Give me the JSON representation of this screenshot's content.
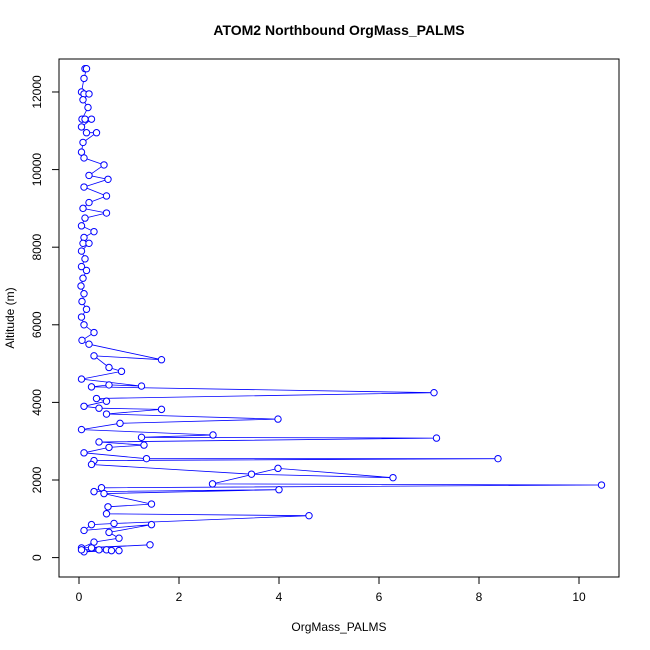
{
  "chart_data": {
    "type": "line",
    "title": "ATOM2 Northbound OrgMass_PALMS",
    "xlabel": "OrgMass_PALMS",
    "ylabel": "Altitude (m)",
    "xlim": [
      -0.4,
      10.8
    ],
    "ylim": [
      -500,
      12850
    ],
    "xticks": [
      0,
      2,
      4,
      6,
      8,
      10
    ],
    "yticks": [
      0,
      2000,
      4000,
      6000,
      8000,
      10000,
      12000
    ],
    "series_color": "#0000ff",
    "markers": "open-circle",
    "grid": false,
    "legend": "none",
    "points": [
      [
        0.12,
        12600
      ],
      [
        0.15,
        12600
      ],
      [
        0.1,
        12350
      ],
      [
        0.05,
        12000
      ],
      [
        0.1,
        11950
      ],
      [
        0.2,
        11950
      ],
      [
        0.08,
        11800
      ],
      [
        0.18,
        11600
      ],
      [
        0.06,
        11300
      ],
      [
        0.12,
        11300
      ],
      [
        0.25,
        11300
      ],
      [
        0.05,
        11100
      ],
      [
        0.15,
        10950
      ],
      [
        0.35,
        10950
      ],
      [
        0.08,
        10700
      ],
      [
        0.05,
        10450
      ],
      [
        0.1,
        10300
      ],
      [
        0.5,
        10120
      ],
      [
        0.2,
        9850
      ],
      [
        0.58,
        9750
      ],
      [
        0.1,
        9550
      ],
      [
        0.55,
        9320
      ],
      [
        0.2,
        9150
      ],
      [
        0.08,
        9000
      ],
      [
        0.55,
        8880
      ],
      [
        0.12,
        8750
      ],
      [
        0.05,
        8550
      ],
      [
        0.3,
        8400
      ],
      [
        0.1,
        8250
      ],
      [
        0.08,
        8100
      ],
      [
        0.2,
        8100
      ],
      [
        0.05,
        7900
      ],
      [
        0.12,
        7700
      ],
      [
        0.05,
        7500
      ],
      [
        0.15,
        7400
      ],
      [
        0.08,
        7200
      ],
      [
        0.04,
        7000
      ],
      [
        0.1,
        6800
      ],
      [
        0.06,
        6600
      ],
      [
        0.15,
        6400
      ],
      [
        0.05,
        6200
      ],
      [
        0.1,
        6000
      ],
      [
        0.3,
        5800
      ],
      [
        0.06,
        5600
      ],
      [
        0.2,
        5500
      ],
      [
        1.65,
        5100
      ],
      [
        0.3,
        5200
      ],
      [
        0.6,
        4900
      ],
      [
        0.85,
        4800
      ],
      [
        0.05,
        4600
      ],
      [
        1.25,
        4420
      ],
      [
        0.6,
        4450
      ],
      [
        0.25,
        4400
      ],
      [
        7.1,
        4250
      ],
      [
        0.35,
        4100
      ],
      [
        0.55,
        4030
      ],
      [
        0.1,
        3900
      ],
      [
        0.4,
        3850
      ],
      [
        1.65,
        3820
      ],
      [
        0.55,
        3700
      ],
      [
        3.98,
        3570
      ],
      [
        0.82,
        3460
      ],
      [
        0.05,
        3300
      ],
      [
        2.68,
        3160
      ],
      [
        1.25,
        3100
      ],
      [
        7.15,
        3080
      ],
      [
        0.4,
        2980
      ],
      [
        1.3,
        2900
      ],
      [
        0.6,
        2840
      ],
      [
        0.1,
        2700
      ],
      [
        1.35,
        2550
      ],
      [
        8.38,
        2550
      ],
      [
        0.3,
        2500
      ],
      [
        0.25,
        2400
      ],
      [
        3.45,
        2150
      ],
      [
        6.28,
        2060
      ],
      [
        3.98,
        2300
      ],
      [
        2.67,
        1900
      ],
      [
        10.45,
        1870
      ],
      [
        0.45,
        1800
      ],
      [
        0.3,
        1700
      ],
      [
        4.0,
        1750
      ],
      [
        0.5,
        1650
      ],
      [
        1.45,
        1380
      ],
      [
        0.58,
        1310
      ],
      [
        0.55,
        1130
      ],
      [
        4.6,
        1080
      ],
      [
        0.7,
        880
      ],
      [
        0.25,
        850
      ],
      [
        0.1,
        700
      ],
      [
        1.45,
        850
      ],
      [
        0.6,
        650
      ],
      [
        0.8,
        500
      ],
      [
        0.3,
        400
      ],
      [
        0.05,
        250
      ],
      [
        1.42,
        330
      ],
      [
        0.25,
        250
      ],
      [
        0.55,
        200
      ],
      [
        0.65,
        180
      ],
      [
        0.8,
        180
      ],
      [
        0.1,
        150
      ],
      [
        0.4,
        200
      ],
      [
        0.05,
        200
      ]
    ]
  }
}
